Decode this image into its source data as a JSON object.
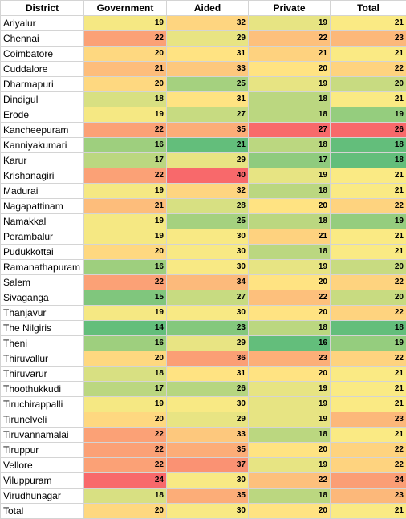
{
  "chart_data": {
    "type": "heatmap",
    "header": {
      "district": "District",
      "columns": [
        "Government",
        "Aided",
        "Private",
        "Total"
      ]
    },
    "rows": [
      {
        "district": "Ariyalur",
        "values": [
          19,
          32,
          19,
          21
        ]
      },
      {
        "district": "Chennai",
        "values": [
          22,
          29,
          22,
          23
        ]
      },
      {
        "district": "Coimbatore",
        "values": [
          20,
          31,
          21,
          21
        ]
      },
      {
        "district": "Cuddalore",
        "values": [
          21,
          33,
          20,
          22
        ]
      },
      {
        "district": "Dharmapuri",
        "values": [
          20,
          25,
          19,
          20
        ]
      },
      {
        "district": "Dindigul",
        "values": [
          18,
          31,
          18,
          21
        ]
      },
      {
        "district": "Erode",
        "values": [
          19,
          27,
          18,
          19
        ]
      },
      {
        "district": "Kancheepuram",
        "values": [
          22,
          35,
          27,
          26
        ]
      },
      {
        "district": "Kanniyakumari",
        "values": [
          16,
          21,
          18,
          18
        ]
      },
      {
        "district": "Karur",
        "values": [
          17,
          29,
          17,
          18
        ]
      },
      {
        "district": "Krishanagiri",
        "values": [
          22,
          40,
          19,
          21
        ]
      },
      {
        "district": "Madurai",
        "values": [
          19,
          32,
          18,
          21
        ]
      },
      {
        "district": "Nagapattinam",
        "values": [
          21,
          28,
          20,
          22
        ]
      },
      {
        "district": "Namakkal",
        "values": [
          19,
          25,
          18,
          19
        ]
      },
      {
        "district": "Perambalur",
        "values": [
          19,
          30,
          21,
          21
        ]
      },
      {
        "district": "Pudukkottai",
        "values": [
          20,
          30,
          18,
          21
        ]
      },
      {
        "district": "Ramanathapuram",
        "values": [
          16,
          30,
          19,
          20
        ]
      },
      {
        "district": "Salem",
        "values": [
          22,
          34,
          20,
          22
        ]
      },
      {
        "district": "Sivaganga",
        "values": [
          15,
          27,
          22,
          20
        ]
      },
      {
        "district": "Thanjavur",
        "values": [
          19,
          30,
          20,
          22
        ]
      },
      {
        "district": "The Nilgiris",
        "values": [
          14,
          23,
          18,
          18
        ]
      },
      {
        "district": "Theni",
        "values": [
          16,
          29,
          16,
          19
        ]
      },
      {
        "district": "Thiruvallur",
        "values": [
          20,
          36,
          23,
          22
        ]
      },
      {
        "district": "Thiruvarur",
        "values": [
          18,
          31,
          20,
          21
        ]
      },
      {
        "district": "Thoothukkudi",
        "values": [
          17,
          26,
          19,
          21
        ]
      },
      {
        "district": "Tiruchirappalli",
        "values": [
          19,
          30,
          19,
          21
        ]
      },
      {
        "district": "Tirunelveli",
        "values": [
          20,
          29,
          19,
          23
        ]
      },
      {
        "district": "Tiruvannamalai",
        "values": [
          22,
          33,
          18,
          21
        ]
      },
      {
        "district": "Tiruppur",
        "values": [
          22,
          35,
          20,
          22
        ]
      },
      {
        "district": "Vellore",
        "values": [
          22,
          37,
          19,
          22
        ]
      },
      {
        "district": "Viluppuram",
        "values": [
          24,
          30,
          22,
          24
        ]
      },
      {
        "district": "Virudhunagar",
        "values": [
          18,
          35,
          18,
          23
        ]
      },
      {
        "district": "Total",
        "values": [
          20,
          30,
          20,
          21
        ]
      }
    ],
    "color_scale": {
      "low": "#63be7b",
      "mid": "#ffeb84",
      "high": "#f8696b"
    },
    "grid": true
  }
}
